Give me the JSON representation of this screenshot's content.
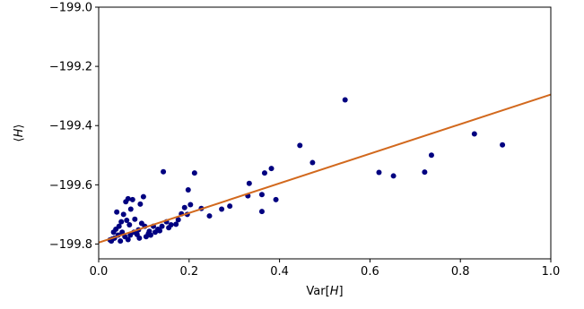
{
  "chart_data": {
    "type": "scatter",
    "title": "",
    "xlabel": "Var[H]",
    "ylabel": "⟨H⟩",
    "xlim": [
      0.0,
      1.0
    ],
    "ylim": [
      -199.85,
      -199.0
    ],
    "xticks": [
      0.0,
      0.2,
      0.4,
      0.6,
      0.8,
      1.0
    ],
    "xtick_labels": [
      "0.0",
      "0.2",
      "0.4",
      "0.6",
      "0.8",
      "1.0"
    ],
    "yticks": [
      -199.0,
      -199.2,
      -199.4,
      -199.6,
      -199.8
    ],
    "ytick_labels": [
      "−199.0",
      "−199.2",
      "−199.4",
      "−199.6",
      "−199.8"
    ],
    "grid": false,
    "legend": "none",
    "series": [
      {
        "kind": "scatter",
        "color": "#000080",
        "points": [
          [
            0.545,
            -199.313
          ],
          [
            0.893,
            -199.465
          ],
          [
            0.831,
            -199.428
          ],
          [
            0.736,
            -199.5
          ],
          [
            0.721,
            -199.557
          ],
          [
            0.652,
            -199.57
          ],
          [
            0.62,
            -199.558
          ],
          [
            0.473,
            -199.525
          ],
          [
            0.445,
            -199.467
          ],
          [
            0.382,
            -199.545
          ],
          [
            0.367,
            -199.56
          ],
          [
            0.392,
            -199.65
          ],
          [
            0.361,
            -199.633
          ],
          [
            0.361,
            -199.69
          ],
          [
            0.333,
            -199.595
          ],
          [
            0.33,
            -199.637
          ],
          [
            0.29,
            -199.672
          ],
          [
            0.272,
            -199.682
          ],
          [
            0.245,
            -199.705
          ],
          [
            0.227,
            -199.68
          ],
          [
            0.212,
            -199.56
          ],
          [
            0.198,
            -199.617
          ],
          [
            0.203,
            -199.667
          ],
          [
            0.196,
            -199.7
          ],
          [
            0.19,
            -199.677
          ],
          [
            0.183,
            -199.698
          ],
          [
            0.176,
            -199.718
          ],
          [
            0.143,
            -199.556
          ],
          [
            0.171,
            -199.733
          ],
          [
            0.15,
            -199.725
          ],
          [
            0.14,
            -199.74
          ],
          [
            0.131,
            -199.75
          ],
          [
            0.121,
            -199.74
          ],
          [
            0.112,
            -199.757
          ],
          [
            0.099,
            -199.64
          ],
          [
            0.092,
            -199.665
          ],
          [
            0.075,
            -199.65
          ],
          [
            0.065,
            -199.647
          ],
          [
            0.071,
            -199.682
          ],
          [
            0.06,
            -199.657
          ],
          [
            0.055,
            -199.7
          ],
          [
            0.08,
            -199.716
          ],
          [
            0.095,
            -199.73
          ],
          [
            0.102,
            -199.74
          ],
          [
            0.088,
            -199.752
          ],
          [
            0.078,
            -199.76
          ],
          [
            0.068,
            -199.735
          ],
          [
            0.062,
            -199.72
          ],
          [
            0.05,
            -199.725
          ],
          [
            0.045,
            -199.74
          ],
          [
            0.04,
            -199.692
          ],
          [
            0.043,
            -199.77
          ],
          [
            0.052,
            -199.76
          ],
          [
            0.058,
            -199.775
          ],
          [
            0.07,
            -199.77
          ],
          [
            0.085,
            -199.768
          ],
          [
            0.11,
            -199.765
          ],
          [
            0.125,
            -199.76
          ],
          [
            0.035,
            -199.78
          ],
          [
            0.03,
            -199.783
          ],
          [
            0.025,
            -199.786
          ],
          [
            0.038,
            -199.75
          ],
          [
            0.048,
            -199.79
          ],
          [
            0.065,
            -199.785
          ],
          [
            0.09,
            -199.78
          ],
          [
            0.105,
            -199.775
          ],
          [
            0.115,
            -199.77
          ],
          [
            0.135,
            -199.755
          ],
          [
            0.155,
            -199.745
          ],
          [
            0.16,
            -199.735
          ],
          [
            0.028,
            -199.79
          ],
          [
            0.033,
            -199.76
          ]
        ]
      },
      {
        "kind": "line",
        "color": "#d2691e",
        "points": [
          [
            0.0,
            -199.795
          ],
          [
            1.0,
            -199.295
          ]
        ]
      }
    ]
  }
}
